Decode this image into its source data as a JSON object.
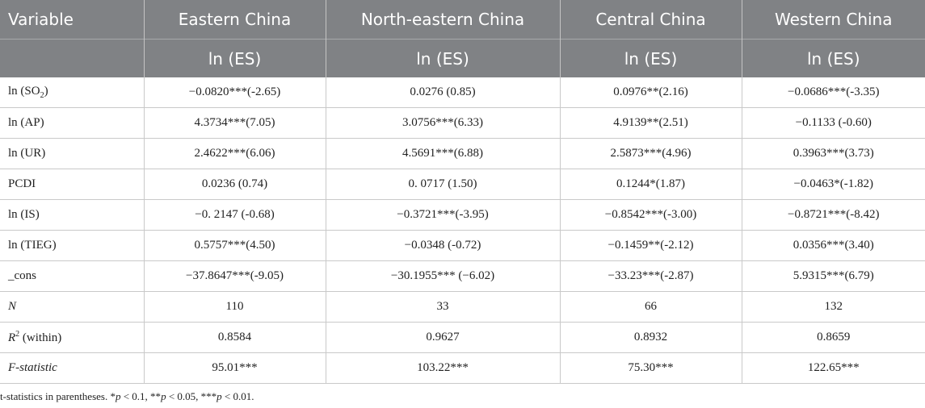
{
  "header": {
    "variable": "Variable",
    "regions": [
      "Eastern China",
      "North-eastern China",
      "Central China",
      "Western China"
    ],
    "dep_var": [
      "ln (ES)",
      "ln (ES)",
      "ln (ES)",
      "ln (ES)"
    ]
  },
  "rows": [
    {
      "prefix": "ln (SO",
      "sub": "2",
      "suffix": ")",
      "values": [
        "−0.0820***(-2.65)",
        "0.0276 (0.85)",
        "0.0976**(2.16)",
        "−0.0686***(-3.35)"
      ]
    },
    {
      "label": "ln (AP)",
      "values": [
        "4.3734***(7.05)",
        "3.0756***(6.33)",
        "4.9139**(2.51)",
        "−0.1133 (-0.60)"
      ]
    },
    {
      "label": "ln (UR)",
      "values": [
        "2.4622***(6.06)",
        "4.5691***(6.88)",
        "2.5873***(4.96)",
        "0.3963***(3.73)"
      ]
    },
    {
      "label": "PCDI",
      "values": [
        "0.0236 (0.74)",
        "0. 0717 (1.50)",
        "0.1244*(1.87)",
        "−0.0463*(-1.82)"
      ]
    },
    {
      "label": "ln (IS)",
      "values": [
        "−0. 2147 (-0.68)",
        "−0.3721***(-3.95)",
        "−0.8542***(-3.00)",
        "−0.8721***(-8.42)"
      ]
    },
    {
      "label": "ln (TIEG)",
      "values": [
        "0.5757***(4.50)",
        "−0.0348 (-0.72)",
        "−0.1459**(-2.12)",
        "0.0356***(3.40)"
      ]
    },
    {
      "label": "_cons",
      "values": [
        "−37.8647***(-9.05)",
        "−30.1955*** (−6.02)",
        "−33.23***(-2.87)",
        "5.9315***(6.79)"
      ]
    },
    {
      "label": "N",
      "values": [
        "110",
        "33",
        "66",
        "132"
      ]
    },
    {
      "prefix": "R",
      "sup": "2",
      "suffix": " (within)",
      "values": [
        "0.8584",
        "0.9627",
        "0.8932",
        "0.8659"
      ]
    },
    {
      "label": "F-statistic",
      "values": [
        "95.01***",
        "103.22***",
        "75.30***",
        "122.65***"
      ]
    }
  ],
  "note": {
    "lead": "t-statistics in parentheses. *",
    "p1": "p",
    "t1": " < 0.1, **",
    "p2": "p",
    "t2": " < 0.05, ***",
    "p3": "p",
    "t3": " < 0.01."
  }
}
